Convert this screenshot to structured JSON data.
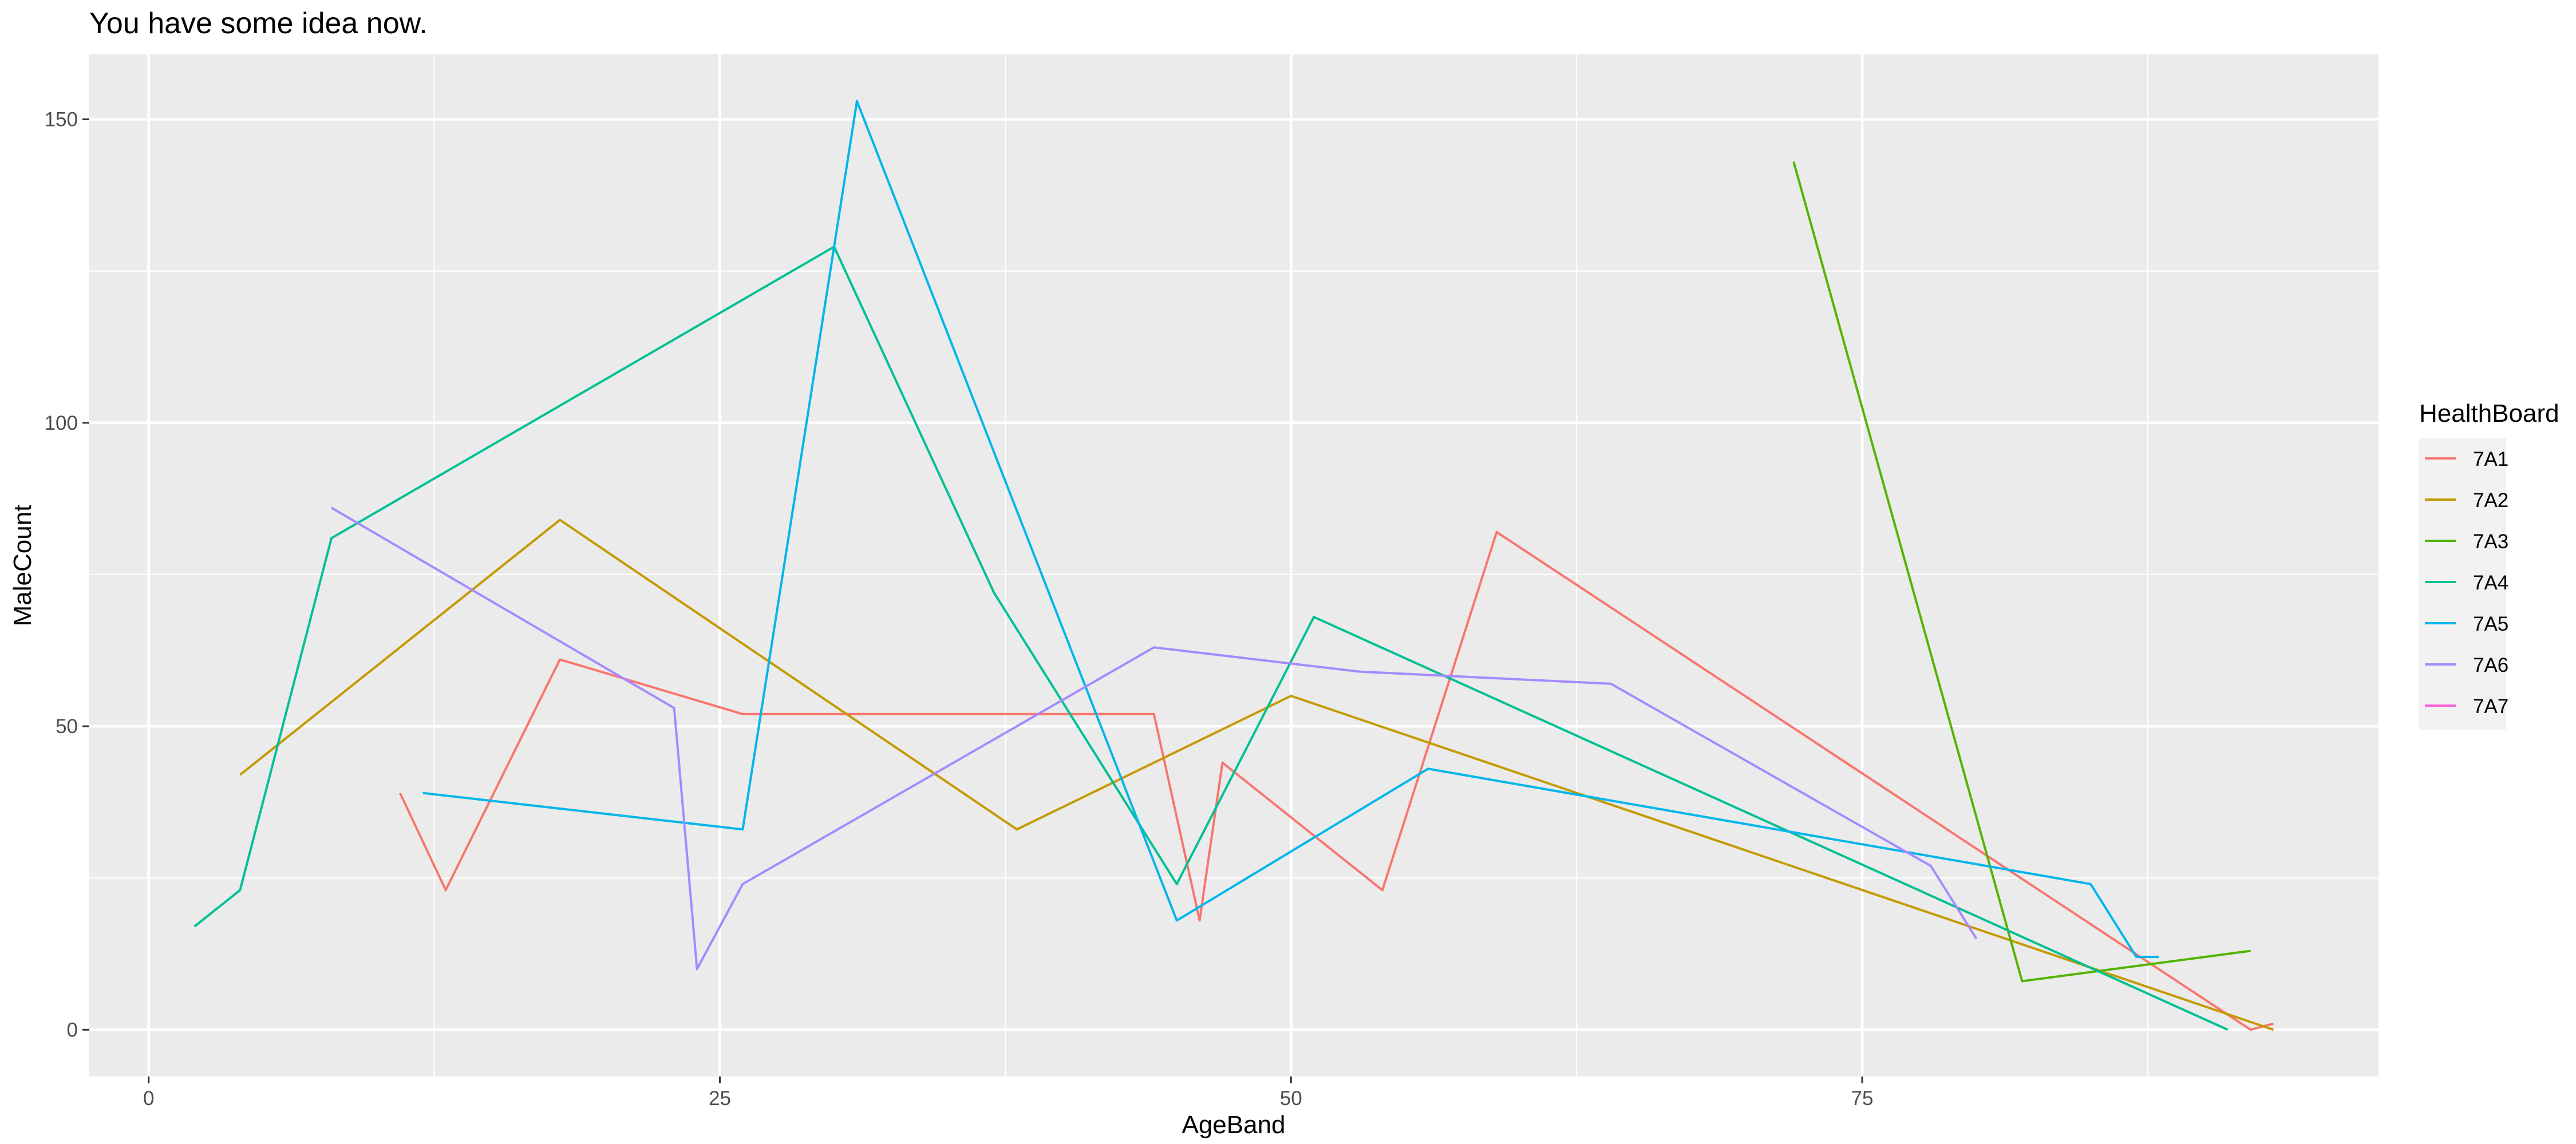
{
  "chart_data": {
    "type": "line",
    "title": "You have some idea now.",
    "xlabel": "AgeBand",
    "ylabel": "MaleCount",
    "xlim": [
      -2.6,
      97.6
    ],
    "ylim": [
      -7.7,
      160.7
    ],
    "x_ticks": [
      0,
      25,
      50,
      75
    ],
    "y_ticks": [
      0,
      50,
      100,
      150
    ],
    "grid": true,
    "legend_placement": "right",
    "legend_title": "HealthBoard",
    "series": [
      {
        "name": "7A1",
        "color": "#F8766D",
        "points": [
          [
            11,
            39
          ],
          [
            13,
            23
          ],
          [
            18,
            61
          ],
          [
            26,
            52
          ],
          [
            44,
            52
          ],
          [
            46,
            18
          ],
          [
            47,
            44
          ],
          [
            54,
            23
          ],
          [
            59,
            82
          ],
          [
            92,
            0
          ],
          [
            93,
            1
          ]
        ]
      },
      {
        "name": "7A2",
        "color": "#C49A00",
        "points": [
          [
            4,
            42
          ],
          [
            18,
            84
          ],
          [
            38,
            33
          ],
          [
            50,
            55
          ],
          [
            93,
            0
          ]
        ]
      },
      {
        "name": "7A3",
        "color": "#53B400",
        "points": [
          [
            72,
            143
          ],
          [
            82,
            8
          ],
          [
            92,
            13
          ]
        ]
      },
      {
        "name": "7A4",
        "color": "#00C094",
        "points": [
          [
            2,
            17
          ],
          [
            4,
            23
          ],
          [
            8,
            81
          ],
          [
            30,
            129
          ],
          [
            37,
            72
          ],
          [
            45,
            24
          ],
          [
            51,
            68
          ],
          [
            91,
            0
          ]
        ]
      },
      {
        "name": "7A5",
        "color": "#00B6EB",
        "points": [
          [
            12,
            39
          ],
          [
            26,
            33
          ],
          [
            31,
            153
          ],
          [
            45,
            18
          ],
          [
            56,
            43
          ],
          [
            85,
            24
          ],
          [
            87,
            12
          ],
          [
            88,
            12
          ]
        ]
      },
      {
        "name": "7A6",
        "color": "#A58AFF",
        "points": [
          [
            8,
            86
          ],
          [
            23,
            53
          ],
          [
            24,
            10
          ],
          [
            26,
            24
          ],
          [
            44,
            63
          ],
          [
            53,
            59
          ],
          [
            64,
            57
          ],
          [
            78,
            27
          ],
          [
            80,
            15
          ]
        ]
      },
      {
        "name": "7A7",
        "color": "#FB61D7",
        "points": []
      }
    ]
  }
}
